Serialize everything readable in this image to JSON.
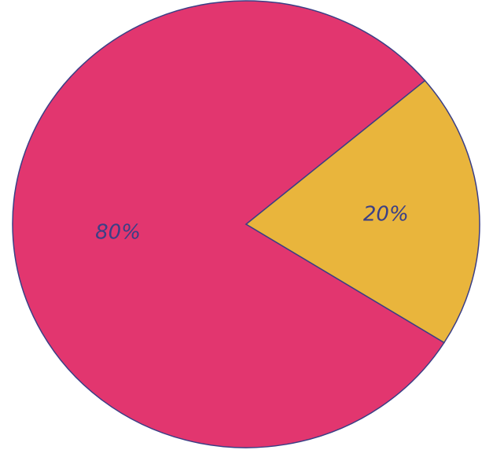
{
  "chart_data": {
    "type": "pie",
    "values": [
      80,
      20
    ],
    "value_labels": [
      "80%",
      "20%"
    ],
    "colors": [
      "#e2366f",
      "#e9b53c"
    ],
    "start_angle": -40
  }
}
